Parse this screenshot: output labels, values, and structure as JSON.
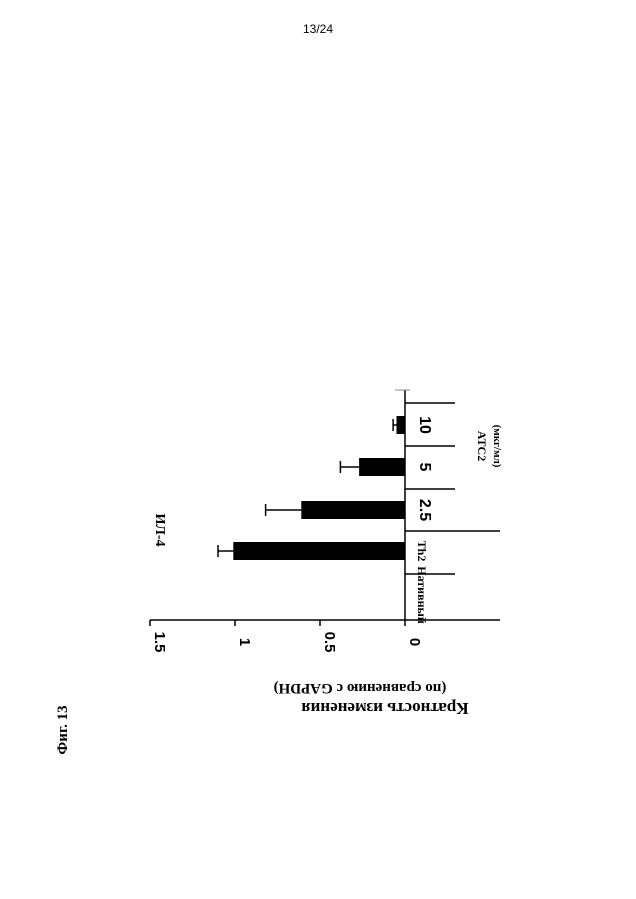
{
  "page_number": "13/24",
  "figure_label": "Фиг. 13",
  "chart_data": {
    "type": "bar",
    "title": "ИЛ-4",
    "ylabel_line1": "Кратность изменения",
    "ylabel_line2": "(по сравнению с GAPDH)",
    "ylim": [
      0,
      1.5
    ],
    "yticks": [
      "0",
      "0.5",
      "1",
      "1.5"
    ],
    "categories": [
      "Нативный",
      "Th2",
      "2.5",
      "5",
      "10"
    ],
    "values": [
      0,
      1.01,
      0.61,
      0.27,
      0.05
    ],
    "errors": [
      0,
      0.09,
      0.21,
      0.11,
      0.02
    ],
    "group_label_line1": "ATC2",
    "group_label_line2": "(мкг/мл)",
    "bar_color": "#000000",
    "grid": false,
    "orientation": "rotated 90° (page printed sideways)"
  }
}
